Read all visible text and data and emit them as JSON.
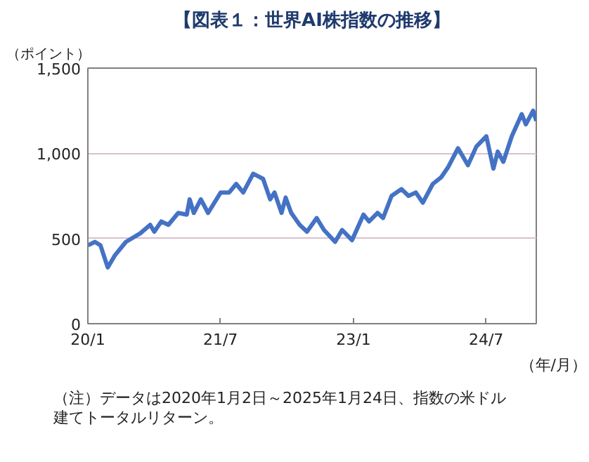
{
  "chart_data": {
    "type": "line",
    "title": "【図表１：世界AI株指数の推移】",
    "ylabel": "（ポイント）",
    "xlabel": "（年/月）",
    "x": [
      "2020-01-02",
      "2020-01-30",
      "2020-02-22",
      "2020-03-23",
      "2020-04-21",
      "2020-06-06",
      "2020-08-04",
      "2020-09-14",
      "2020-10-01",
      "2020-10-30",
      "2020-11-28",
      "2021-01-08",
      "2021-02-12",
      "2021-02-24",
      "2021-03-13",
      "2021-04-11",
      "2021-05-11",
      "2021-07-02",
      "2021-08-06",
      "2021-09-04",
      "2021-10-03",
      "2021-11-13",
      "2021-12-24",
      "2022-01-22",
      "2022-02-09",
      "2022-03-10",
      "2022-03-27",
      "2022-04-19",
      "2022-05-24",
      "2022-06-23",
      "2022-08-02",
      "2022-09-01",
      "2022-10-17",
      "2022-11-15",
      "2022-12-26",
      "2023-02-11",
      "2023-03-06",
      "2023-04-10",
      "2023-05-03",
      "2023-06-07",
      "2023-07-18",
      "2023-08-16",
      "2023-09-15",
      "2023-10-14",
      "2023-11-24",
      "2023-12-29",
      "2024-01-27",
      "2024-03-07",
      "2024-04-17",
      "2024-05-22",
      "2024-07-02",
      "2024-07-31",
      "2024-08-18",
      "2024-09-10",
      "2024-10-15",
      "2024-11-25",
      "2024-12-12",
      "2025-01-11",
      "2025-01-24"
    ],
    "series": [
      {
        "color": "#4472c4",
        "values": [
          460,
          480,
          460,
          330,
          400,
          480,
          530,
          580,
          540,
          600,
          580,
          650,
          640,
          730,
          650,
          730,
          650,
          770,
          770,
          820,
          770,
          880,
          850,
          730,
          770,
          650,
          740,
          650,
          580,
          540,
          620,
          550,
          480,
          550,
          490,
          640,
          600,
          650,
          620,
          750,
          790,
          750,
          770,
          710,
          820,
          860,
          920,
          1030,
          930,
          1040,
          1100,
          910,
          1010,
          950,
          1100,
          1230,
          1170,
          1250,
          1190
        ]
      }
    ],
    "xlim": [
      "2020-01-01",
      "2025-01-24"
    ],
    "xticks": [
      {
        "value": "2020-01-01",
        "label": "20/1"
      },
      {
        "value": "2021-07-01",
        "label": "21/7"
      },
      {
        "value": "2023-01-01",
        "label": "23/1"
      },
      {
        "value": "2024-07-01",
        "label": "24/7"
      }
    ],
    "ylim": [
      0,
      1500
    ],
    "yticks": [
      0,
      {
        "value": 500,
        "label": "500"
      },
      {
        "value": 1000,
        "label": "1,000"
      },
      {
        "value": 1500,
        "label": "1,500"
      }
    ],
    "grid": "y",
    "marker": "none",
    "line_style": "solid",
    "annotations": [
      "（注）データは2020年1月2日～2025年1月24日、指数の米ドル建てトータルリターン。"
    ]
  }
}
